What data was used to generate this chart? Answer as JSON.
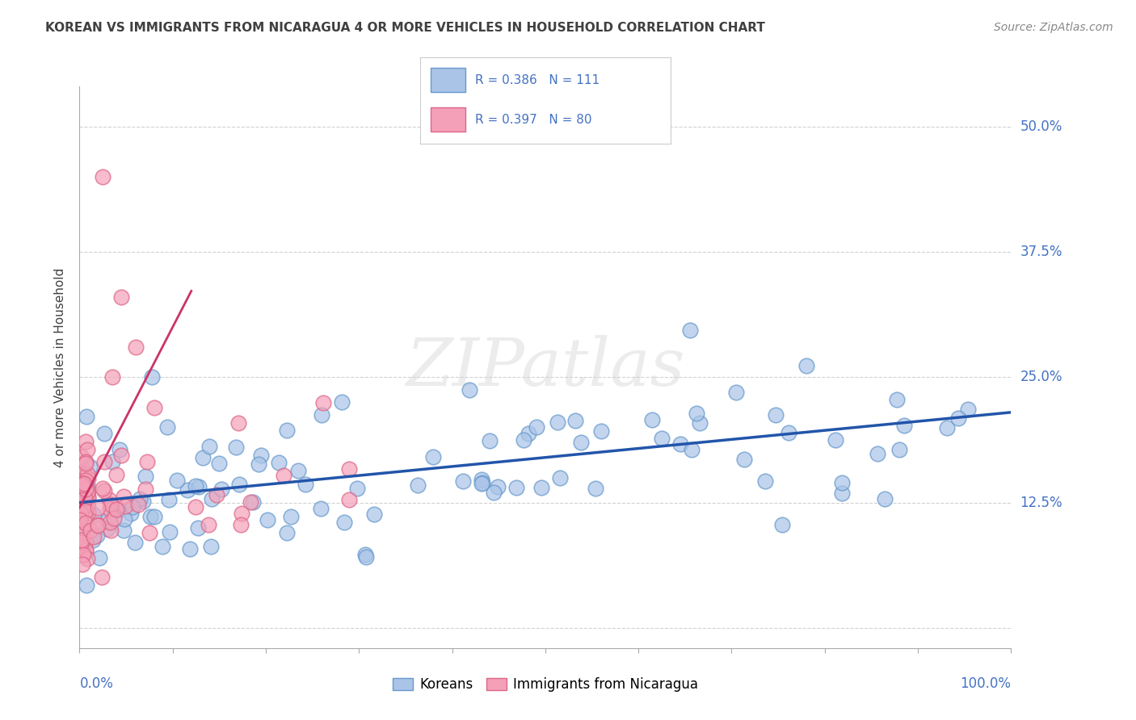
{
  "title": "KOREAN VS IMMIGRANTS FROM NICARAGUA 4 OR MORE VEHICLES IN HOUSEHOLD CORRELATION CHART",
  "source": "Source: ZipAtlas.com",
  "ylabel": "4 or more Vehicles in Household",
  "koreans_R": 0.386,
  "koreans_N": 111,
  "nicaragua_R": 0.397,
  "nicaragua_N": 80,
  "korean_color": "#aac4e8",
  "nicaragua_color": "#f4a0b8",
  "korean_edge_color": "#6699cc",
  "nicaragua_edge_color": "#dd6688",
  "korean_line_color": "#2255aa",
  "nicaragua_line_color": "#cc3366",
  "legend_text_color": "#4472c4",
  "tick_label_color": "#4472c4",
  "watermark": "ZIPatlas",
  "background_color": "#ffffff",
  "grid_color": "#cccccc",
  "title_color": "#404040",
  "source_color": "#888888",
  "ylabel_color": "#404040",
  "ytick_positions": [
    0.0,
    0.125,
    0.25,
    0.375,
    0.5
  ],
  "ytick_labels": [
    "",
    "12.5%",
    "25.0%",
    "37.5%",
    "50.0%"
  ],
  "xlim": [
    0,
    100
  ],
  "ylim": [
    -0.02,
    0.54
  ]
}
